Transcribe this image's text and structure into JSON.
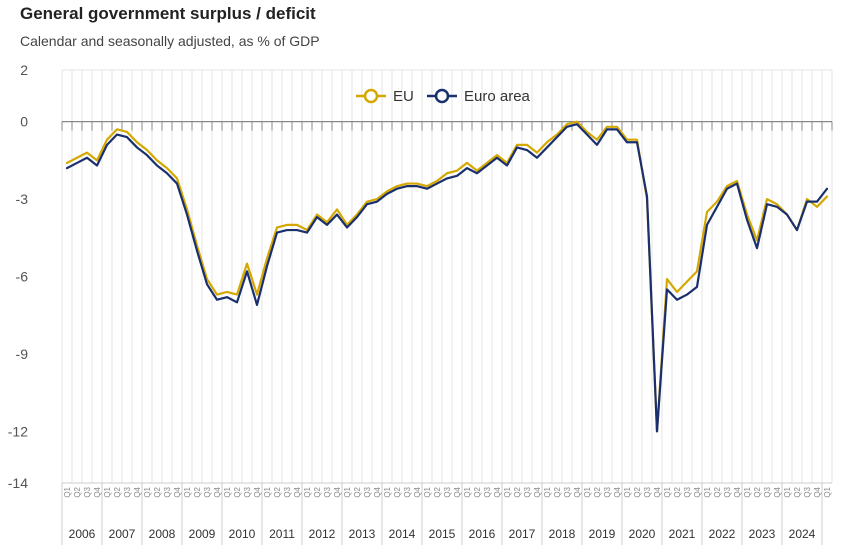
{
  "chart_data": {
    "type": "line",
    "title": "General government surplus / deficit",
    "subtitle": "Calendar and seasonally adjusted, as % of GDP",
    "xlabel": "",
    "ylabel": "",
    "ylim": [
      -14,
      2
    ],
    "yticks": [
      2,
      0,
      -3,
      -6,
      -9,
      -12,
      -14
    ],
    "grid": true,
    "legend_position": "top-center",
    "quarter_labels": [
      "Q1",
      "Q2",
      "Q3",
      "Q4"
    ],
    "years": [
      "2006",
      "2007",
      "2008",
      "2009",
      "2010",
      "2011",
      "2012",
      "2013",
      "2014",
      "2015",
      "2016",
      "2017",
      "2018",
      "2019",
      "2020",
      "2021",
      "2022",
      "2023",
      "2024"
    ],
    "colors": {
      "eu": "#d4a800",
      "euro_area": "#1a2f6e",
      "grid": "#e6e6e6",
      "axis": "#888888"
    },
    "series": [
      {
        "name": "EU",
        "values": [
          -1.6,
          -1.4,
          -1.2,
          -1.5,
          -0.7,
          -0.3,
          -0.4,
          -0.8,
          -1.1,
          -1.5,
          -1.8,
          -2.2,
          -3.4,
          -4.8,
          -6.1,
          -6.7,
          -6.6,
          -6.7,
          -5.5,
          -6.7,
          -5.3,
          -4.1,
          -4.0,
          -4.0,
          -4.2,
          -3.6,
          -3.9,
          -3.4,
          -4.0,
          -3.6,
          -3.1,
          -3.0,
          -2.7,
          -2.5,
          -2.4,
          -2.4,
          -2.5,
          -2.3,
          -2.0,
          -1.9,
          -1.6,
          -1.9,
          -1.6,
          -1.3,
          -1.6,
          -0.9,
          -0.9,
          -1.2,
          -0.8,
          -0.5,
          -0.1,
          -0.0,
          -0.4,
          -0.7,
          -0.2,
          -0.2,
          -0.7,
          -0.7,
          -3.0,
          -12.0,
          -6.1,
          -6.6,
          -6.2,
          -5.8,
          -3.5,
          -3.1,
          -2.5,
          -2.3,
          -3.6,
          -4.6,
          -3.0,
          -3.2,
          -3.6,
          -4.2,
          -3.0,
          -3.3,
          -2.9
        ]
      },
      {
        "name": "Euro area",
        "values": [
          -1.8,
          -1.6,
          -1.4,
          -1.7,
          -0.9,
          -0.5,
          -0.6,
          -1.0,
          -1.3,
          -1.7,
          -2.0,
          -2.4,
          -3.6,
          -5.0,
          -6.3,
          -6.9,
          -6.8,
          -7.0,
          -5.8,
          -7.1,
          -5.6,
          -4.3,
          -4.2,
          -4.2,
          -4.3,
          -3.7,
          -4.0,
          -3.6,
          -4.1,
          -3.7,
          -3.2,
          -3.1,
          -2.8,
          -2.6,
          -2.5,
          -2.5,
          -2.6,
          -2.4,
          -2.2,
          -2.1,
          -1.8,
          -2.0,
          -1.7,
          -1.4,
          -1.7,
          -1.0,
          -1.1,
          -1.4,
          -1.0,
          -0.6,
          -0.2,
          -0.1,
          -0.5,
          -0.9,
          -0.3,
          -0.3,
          -0.8,
          -0.8,
          -2.9,
          -12.0,
          -6.5,
          -6.9,
          -6.7,
          -6.4,
          -4.0,
          -3.3,
          -2.6,
          -2.4,
          -3.8,
          -4.9,
          -3.2,
          -3.3,
          -3.6,
          -4.2,
          -3.1,
          -3.1,
          -2.6
        ]
      }
    ]
  }
}
